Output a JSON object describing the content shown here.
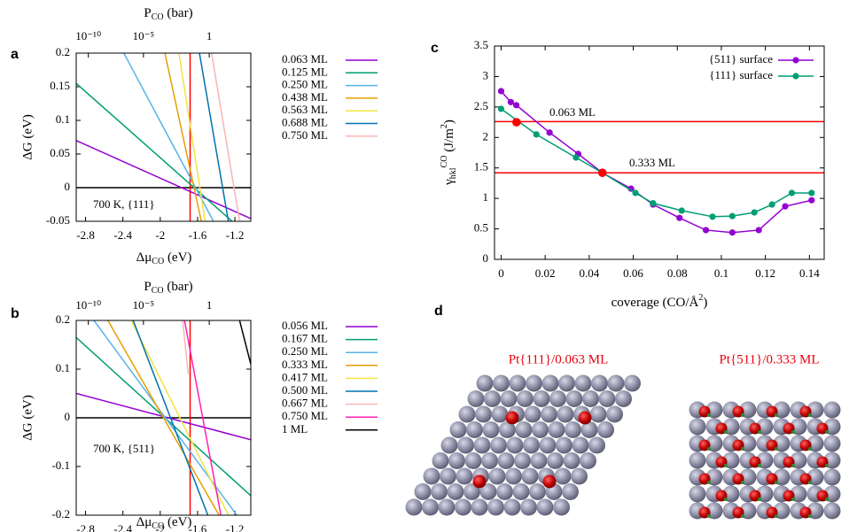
{
  "chart_data": [
    {
      "type": "line",
      "panel": "a",
      "ylabel": "ΔG (eV)",
      "xlabel": [
        {
          "text": "Δμ"
        },
        {
          "sub": "CO"
        },
        {
          "text": " (eV)"
        }
      ],
      "x2label": [
        {
          "text": "P"
        },
        {
          "sub": "CO"
        },
        {
          "text": " (bar)"
        }
      ],
      "annotation": "700 K, {111}",
      "xlim": [
        -2.9,
        -1.03
      ],
      "ylim": [
        -0.05,
        0.2
      ],
      "xticks": [
        -2.8,
        -2.4,
        -2,
        -1.6,
        -1.2
      ],
      "yticks": [
        -0.05,
        0,
        0.05,
        0.1,
        0.15,
        0.2
      ],
      "x2ticks": [
        {
          "value": -2.77,
          "label": "10⁻¹⁰"
        },
        {
          "value": -2.18,
          "label": "10⁻⁵"
        },
        {
          "value": -1.475,
          "label": "1"
        }
      ],
      "hlines": [
        {
          "value": 0,
          "color": "#000000"
        }
      ],
      "vlines": [
        {
          "value": -1.68,
          "color": "#ff0000"
        }
      ],
      "grid": false,
      "legend": "outside-right",
      "markers": false,
      "series": [
        {
          "name": "0.063 ML",
          "color": "#9400d3",
          "x": [
            -2.9,
            -1.03
          ],
          "values": [
            0.07,
            -0.046
          ]
        },
        {
          "name": "0.125 ML",
          "color": "#009e73",
          "x": [
            -2.9,
            -1.23
          ],
          "values": [
            0.155,
            -0.05
          ]
        },
        {
          "name": "0.250 ML",
          "color": "#56b4e9",
          "x": [
            -2.39,
            -1.43
          ],
          "values": [
            0.2,
            -0.05
          ]
        },
        {
          "name": "0.438 ML",
          "color": "#e69f00",
          "x": [
            -1.95,
            -1.56
          ],
          "values": [
            0.2,
            -0.05
          ]
        },
        {
          "name": "0.563 ML",
          "color": "#f0e442",
          "x": [
            -1.8,
            -1.52
          ],
          "values": [
            0.2,
            -0.05
          ]
        },
        {
          "name": "0.688 ML",
          "color": "#0072b2",
          "x": [
            -1.58,
            -1.27
          ],
          "values": [
            0.2,
            -0.05
          ]
        },
        {
          "name": "0.750 ML",
          "color": "#f7b6b6",
          "x": [
            -1.45,
            -1.15
          ],
          "values": [
            0.2,
            -0.05
          ]
        }
      ]
    },
    {
      "type": "line",
      "panel": "b",
      "ylabel": "ΔG (eV)",
      "xlabel": [
        {
          "text": "Δμ"
        },
        {
          "sub": "CO"
        },
        {
          "text": " (eV)"
        }
      ],
      "x2label": [
        {
          "text": "P"
        },
        {
          "sub": "CO"
        },
        {
          "text": " (bar)"
        }
      ],
      "annotation": "700 K, {511}",
      "xlim": [
        -2.9,
        -1.03
      ],
      "ylim": [
        -0.2,
        0.2
      ],
      "xticks": [
        -2.8,
        -2.4,
        -2,
        -1.6,
        -1.2
      ],
      "yticks": [
        -0.2,
        -0.1,
        0,
        0.1,
        0.2
      ],
      "x2ticks": [
        {
          "value": -2.77,
          "label": "10⁻¹⁰"
        },
        {
          "value": -2.18,
          "label": "10⁻⁵"
        },
        {
          "value": -1.475,
          "label": "1"
        }
      ],
      "hlines": [
        {
          "value": 0,
          "color": "#000000"
        }
      ],
      "vlines": [
        {
          "value": -1.68,
          "color": "#ff0000"
        }
      ],
      "grid": false,
      "legend": "outside-right",
      "markers": false,
      "series": [
        {
          "name": "0.056 ML",
          "color": "#9400d3",
          "x": [
            -2.9,
            -1.03
          ],
          "values": [
            0.05,
            -0.045
          ]
        },
        {
          "name": "0.167 ML",
          "color": "#009e73",
          "x": [
            -2.9,
            -1.03
          ],
          "values": [
            0.165,
            -0.16
          ]
        },
        {
          "name": "0.250 ML",
          "color": "#56b4e9",
          "x": [
            -2.71,
            -1.18
          ],
          "values": [
            0.2,
            -0.2
          ]
        },
        {
          "name": "0.333 ML",
          "color": "#e69f00",
          "x": [
            -2.56,
            -1.37
          ],
          "values": [
            0.2,
            -0.2
          ]
        },
        {
          "name": "0.417 ML",
          "color": "#f0e442",
          "x": [
            -2.31,
            -1.27
          ],
          "values": [
            0.2,
            -0.2
          ]
        },
        {
          "name": "0.500 ML",
          "color": "#0072b2",
          "x": [
            -2.29,
            -1.49
          ],
          "values": [
            0.2,
            -0.2
          ]
        },
        {
          "name": "0.667 ML",
          "color": "#f7b6b6",
          "x": [
            -1.76,
            -1.7
          ],
          "values": [
            0.2,
            0.09
          ]
        },
        {
          "name": "0.750 ML",
          "color": "#ff1fb4",
          "x": [
            -1.74,
            -1.35
          ],
          "values": [
            0.2,
            -0.2
          ]
        },
        {
          "name": "1 ML",
          "color": "#000000",
          "x": [
            -1.15,
            -1.03
          ],
          "values": [
            0.2,
            0.11
          ]
        }
      ]
    },
    {
      "type": "line",
      "panel": "c",
      "ylabel": [
        {
          "text": "γ"
        },
        {
          "sub": "hkl"
        },
        {
          "sup": "CO"
        },
        {
          "text": " (J/m"
        },
        {
          "sup": "2"
        },
        {
          "text": ")"
        }
      ],
      "xlabel": [
        {
          "text": "coverage (CO/Å"
        },
        {
          "sup": "2"
        },
        {
          "text": ")"
        }
      ],
      "xlim": [
        -0.003,
        0.1467
      ],
      "ylim": [
        0,
        3.5
      ],
      "xticks": [
        0,
        0.02,
        0.04,
        0.06,
        0.08,
        0.1,
        0.12,
        0.14
      ],
      "yticks": [
        0,
        0.5,
        1,
        1.5,
        2,
        2.5,
        3,
        3.5
      ],
      "hlines": [
        {
          "value": 2.26,
          "label": "0.063 ML",
          "color": "#ff0000"
        },
        {
          "value": 1.42,
          "label": "0.333 ML",
          "color": "#ff0000"
        }
      ],
      "highlight": {
        "color": "#ff0000",
        "x": [
          0.007,
          0.046
        ],
        "values": [
          2.25,
          1.42
        ]
      },
      "grid": false,
      "legend": "top-right",
      "markers": true,
      "series": [
        {
          "name": "{511} surface",
          "color": "#9400d3",
          "x": [
            0,
            0.0044,
            0.0069,
            0.022,
            0.035,
            0.046,
            0.059,
            0.069,
            0.081,
            0.093,
            0.105,
            0.117,
            0.129,
            0.141
          ],
          "values": [
            2.76,
            2.58,
            2.53,
            2.08,
            1.73,
            1.42,
            1.16,
            0.9,
            0.68,
            0.48,
            0.44,
            0.48,
            0.87,
            0.97
          ]
        },
        {
          "name": "{111} surface",
          "color": "#009e73",
          "x": [
            0,
            0.016,
            0.034,
            0.046,
            0.061,
            0.069,
            0.082,
            0.096,
            0.105,
            0.115,
            0.123,
            0.132,
            0.141
          ],
          "values": [
            2.47,
            2.05,
            1.67,
            1.42,
            1.09,
            0.92,
            0.8,
            0.7,
            0.71,
            0.77,
            0.9,
            1.09,
            1.09
          ]
        }
      ]
    }
  ],
  "structures": {
    "panel": "d",
    "captions": [
      "Pt{111}/0.063 ML",
      "Pt{511}/0.333 ML"
    ]
  }
}
